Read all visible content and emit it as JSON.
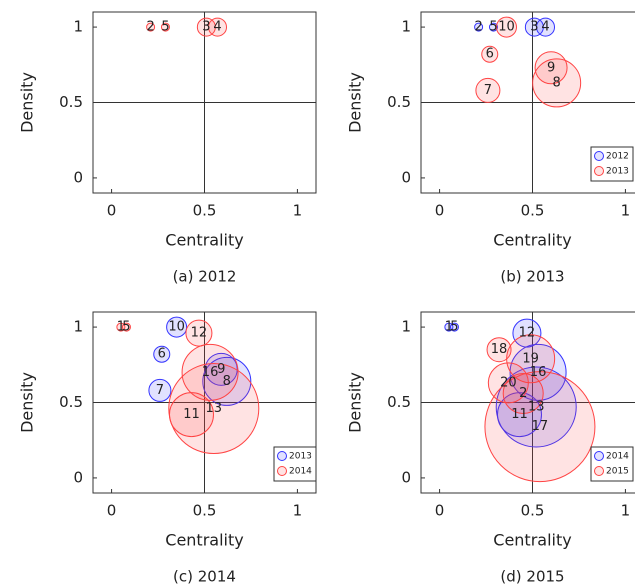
{
  "chart_data": [
    {
      "type": "scatter",
      "caption": "(a) 2012",
      "x_label": "Centrality",
      "y_label": "Density",
      "xlim": [
        -0.1,
        1.1
      ],
      "ylim": [
        -0.1,
        1.1
      ],
      "xticks": [
        0,
        0.5,
        1
      ],
      "yticks": [
        0,
        0.5,
        1
      ],
      "hline": 0.5,
      "vline": 0.5,
      "series": [
        {
          "color": "#ff4444",
          "labels": [
            "2",
            "5",
            "3",
            "4"
          ],
          "x": [
            0.21,
            0.29,
            0.51,
            0.57
          ],
          "y": [
            1,
            1,
            1,
            1
          ],
          "sizes": [
            4,
            4,
            9,
            9
          ]
        }
      ]
    },
    {
      "type": "scatter",
      "caption": "(b) 2013",
      "x_label": "Centrality",
      "y_label": "Density",
      "xlim": [
        -0.1,
        1.1
      ],
      "ylim": [
        -0.1,
        1.1
      ],
      "xticks": [
        0,
        0.5,
        1
      ],
      "yticks": [
        0,
        0.5,
        1
      ],
      "hline": 0.5,
      "vline": 0.5,
      "legend": "lower right",
      "series": [
        {
          "name": "2012",
          "color": "#3333ff",
          "labels": [
            "2",
            "5",
            "3",
            "4"
          ],
          "x": [
            0.21,
            0.29,
            0.51,
            0.57
          ],
          "y": [
            1,
            1,
            1,
            1
          ],
          "sizes": [
            4,
            4,
            9,
            9
          ]
        },
        {
          "name": "2013",
          "color": "#ff4444",
          "labels": [
            "10",
            "6",
            "7",
            "9",
            "8"
          ],
          "x": [
            0.36,
            0.27,
            0.26,
            0.6,
            0.63
          ],
          "y": [
            1,
            0.82,
            0.58,
            0.73,
            0.63
          ],
          "sizes": [
            10,
            8,
            12,
            16,
            24
          ]
        }
      ]
    },
    {
      "type": "scatter",
      "caption": "(c) 2014",
      "x_label": "Centrality",
      "y_label": "Density",
      "xlim": [
        -0.1,
        1.1
      ],
      "ylim": [
        -0.1,
        1.1
      ],
      "xticks": [
        0,
        0.5,
        1
      ],
      "yticks": [
        0,
        0.5,
        1
      ],
      "hline": 0.5,
      "vline": 0.5,
      "legend": "lower right",
      "series": [
        {
          "name": "2013",
          "color": "#3333ff",
          "labels": [
            "10",
            "6",
            "7",
            "9",
            "8"
          ],
          "x": [
            0.35,
            0.27,
            0.26,
            0.59,
            0.62
          ],
          "y": [
            1,
            0.82,
            0.58,
            0.72,
            0.64
          ],
          "sizes": [
            10,
            8,
            11,
            16,
            24
          ]
        },
        {
          "name": "2014",
          "color": "#ff4444",
          "labels": [
            "1",
            "5",
            "12",
            "16",
            "11",
            "13"
          ],
          "x": [
            0.05,
            0.08,
            0.47,
            0.53,
            0.43,
            0.55
          ],
          "y": [
            1,
            1,
            0.96,
            0.7,
            0.42,
            0.46
          ],
          "sizes": [
            4,
            4,
            13,
            28,
            22,
            45
          ]
        }
      ]
    },
    {
      "type": "scatter",
      "caption": "(d) 2015",
      "x_label": "Centrality",
      "y_label": "Density",
      "xlim": [
        -0.1,
        1.1
      ],
      "ylim": [
        -0.1,
        1.1
      ],
      "xticks": [
        0,
        0.5,
        1
      ],
      "yticks": [
        0,
        0.5,
        1
      ],
      "hline": 0.5,
      "vline": 0.5,
      "legend": "lower right",
      "series": [
        {
          "name": "2014",
          "color": "#3333ff",
          "labels": [
            "1",
            "5",
            "12",
            "16",
            "11",
            "13"
          ],
          "x": [
            0.05,
            0.08,
            0.47,
            0.53,
            0.43,
            0.52
          ],
          "y": [
            1,
            1,
            0.96,
            0.7,
            0.42,
            0.47
          ],
          "sizes": [
            4,
            4,
            14,
            28,
            22,
            40
          ]
        },
        {
          "name": "2015",
          "color": "#ff4444",
          "labels": [
            "18",
            "19",
            "20",
            "2",
            "17"
          ],
          "x": [
            0.32,
            0.49,
            0.37,
            0.45,
            0.54
          ],
          "y": [
            0.85,
            0.79,
            0.63,
            0.56,
            0.34
          ],
          "sizes": [
            12,
            24,
            20,
            20,
            55
          ]
        }
      ]
    }
  ]
}
